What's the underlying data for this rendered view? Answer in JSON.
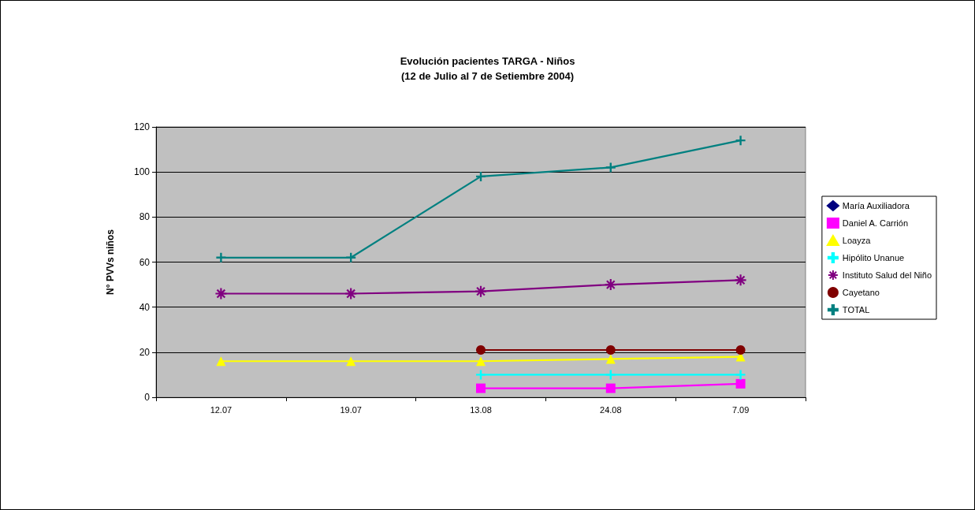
{
  "chart_data": {
    "type": "line",
    "title": "Evolución pacientes TARGA - Niños\n(12 de Julio al 7 de Setiembre 2004)",
    "ylabel": "N° PVVs niños",
    "categories": [
      "12.07",
      "19.07",
      "13.08",
      "24.08",
      "7.09"
    ],
    "series": [
      {
        "name": "María Auxiliadora",
        "color": "#000080",
        "marker": "diamond",
        "values": [
          null,
          null,
          null,
          null,
          null
        ]
      },
      {
        "name": "Daniel A. Carrión",
        "color": "#ff00ff",
        "marker": "square",
        "values": [
          null,
          null,
          4,
          4,
          6
        ]
      },
      {
        "name": "Loayza",
        "color": "#ffff00",
        "marker": "triangle",
        "values": [
          16,
          16,
          16,
          17,
          18
        ]
      },
      {
        "name": "Hipólito Unanue",
        "color": "#00ffff",
        "marker": "cross",
        "values": [
          null,
          null,
          10,
          10,
          10
        ]
      },
      {
        "name": "Instituto Salud del Niño",
        "color": "#800080",
        "marker": "star",
        "values": [
          46,
          46,
          47,
          50,
          52
        ]
      },
      {
        "name": "Cayetano",
        "color": "#800000",
        "marker": "circle",
        "values": [
          null,
          null,
          21,
          21,
          21
        ]
      },
      {
        "name": "TOTAL",
        "color": "#008080",
        "marker": "cross",
        "values": [
          62,
          62,
          98,
          102,
          114
        ]
      }
    ],
    "ylim": [
      0,
      120
    ],
    "yticks": [
      0,
      20,
      40,
      60,
      80,
      100,
      120
    ],
    "grid": "y",
    "legend": "right",
    "line_style": "solid"
  }
}
